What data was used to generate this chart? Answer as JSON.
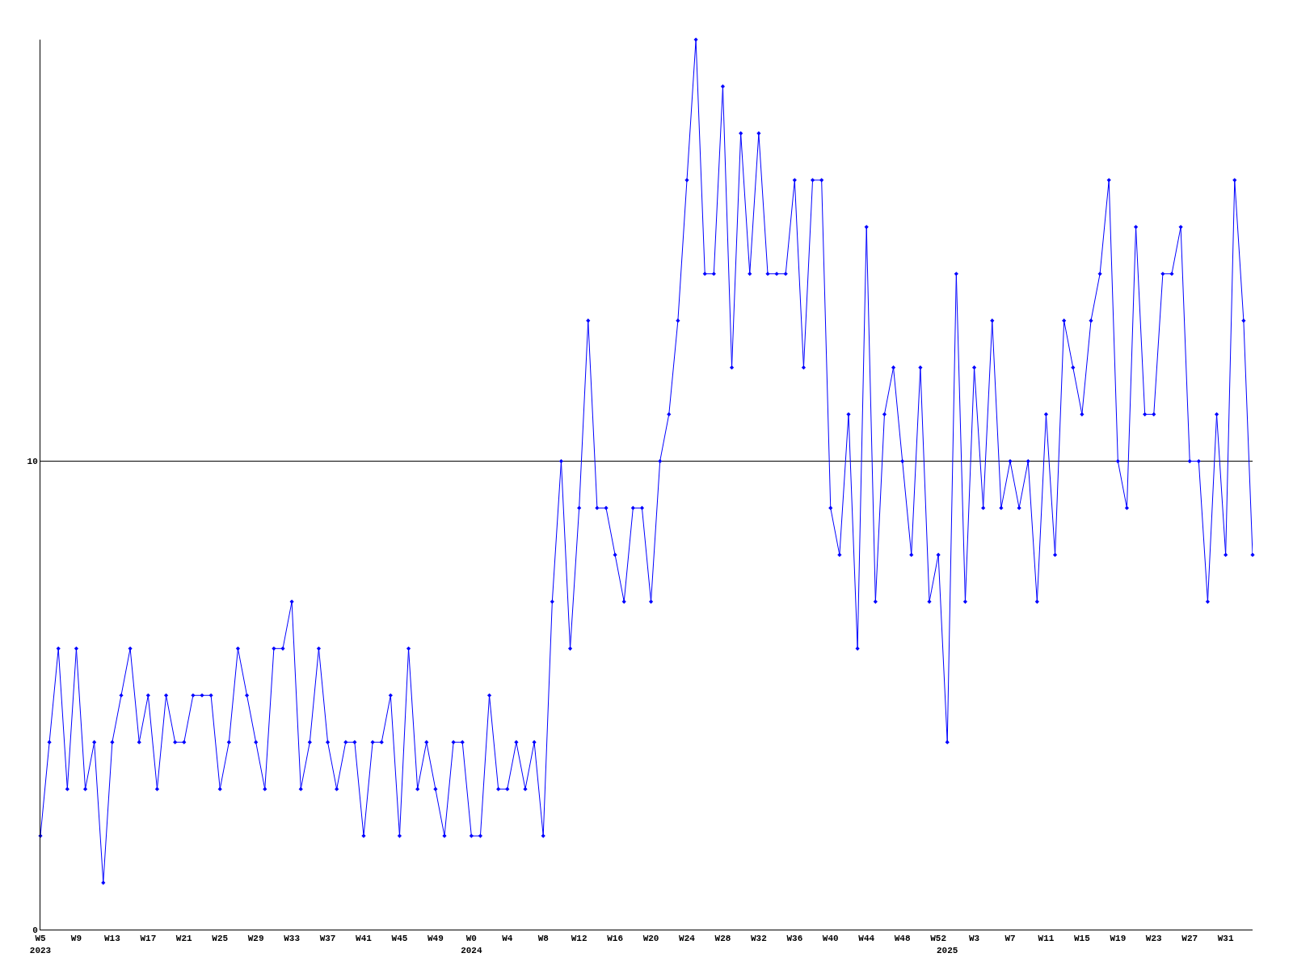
{
  "chart_data": {
    "type": "line",
    "categories": [
      "W5\n2023",
      null,
      null,
      null,
      "W9",
      null,
      null,
      null,
      "W13",
      null,
      null,
      null,
      "W17",
      null,
      null,
      null,
      "W21",
      null,
      null,
      null,
      "W25",
      null,
      null,
      null,
      "W29",
      null,
      null,
      null,
      "W33",
      null,
      null,
      null,
      "W37",
      null,
      null,
      null,
      "W41",
      null,
      null,
      null,
      "W45",
      null,
      null,
      null,
      "W49",
      null,
      null,
      null,
      "W0\n2024",
      null,
      null,
      null,
      "W4",
      null,
      null,
      null,
      "W8",
      null,
      null,
      null,
      "W12",
      null,
      null,
      null,
      "W16",
      null,
      null,
      null,
      "W20",
      null,
      null,
      null,
      "W24",
      null,
      null,
      null,
      "W28",
      null,
      null,
      null,
      "W32",
      null,
      null,
      null,
      "W36",
      null,
      null,
      null,
      "W40",
      null,
      null,
      null,
      "W44",
      null,
      null,
      null,
      "W48",
      null,
      null,
      null,
      "W52",
      "\n2025",
      null,
      null,
      "W3",
      null,
      null,
      null,
      "W7",
      null,
      null,
      null,
      "W11",
      null,
      null,
      null,
      "W15",
      null,
      null,
      null,
      "W19",
      null,
      null,
      null,
      "W23",
      null,
      null,
      null,
      "W27",
      null,
      null,
      null,
      "W31",
      null,
      null,
      null
    ],
    "series": [
      {
        "color": "#0000ff",
        "values": [
          2,
          4,
          6,
          3,
          6,
          3,
          4,
          1,
          4,
          5,
          6,
          4,
          5,
          3,
          5,
          4,
          4,
          5,
          5,
          5,
          3,
          4,
          6,
          5,
          4,
          3,
          6,
          6,
          7,
          3,
          4,
          6,
          4,
          3,
          4,
          4,
          2,
          4,
          4,
          5,
          2,
          6,
          3,
          4,
          3,
          2,
          4,
          4,
          2,
          2,
          5,
          3,
          3,
          4,
          3,
          4,
          2,
          7,
          10,
          6,
          9,
          13,
          9,
          9,
          8,
          7,
          9,
          9,
          7,
          10,
          11,
          13,
          16,
          19,
          14,
          14,
          18,
          12,
          17,
          14,
          17,
          14,
          14,
          14,
          16,
          12,
          16,
          16,
          9,
          8,
          11,
          6,
          15,
          7,
          11,
          12,
          10,
          8,
          12,
          7,
          8,
          4,
          14,
          7,
          12,
          9,
          13,
          9,
          10,
          9,
          10,
          7,
          11,
          8,
          13,
          12,
          11,
          13,
          14,
          16,
          10,
          9,
          15,
          11,
          11,
          14,
          14,
          15,
          10,
          10,
          7,
          11,
          8,
          16,
          13,
          8
        ]
      }
    ],
    "ylim": [
      0,
      19
    ],
    "yticks": [
      0,
      10
    ],
    "ref_lines": [
      {
        "axis": "y",
        "value": 10,
        "color": "#000000"
      }
    ],
    "marker": "diamond",
    "line_style": "solid",
    "grid": false
  }
}
